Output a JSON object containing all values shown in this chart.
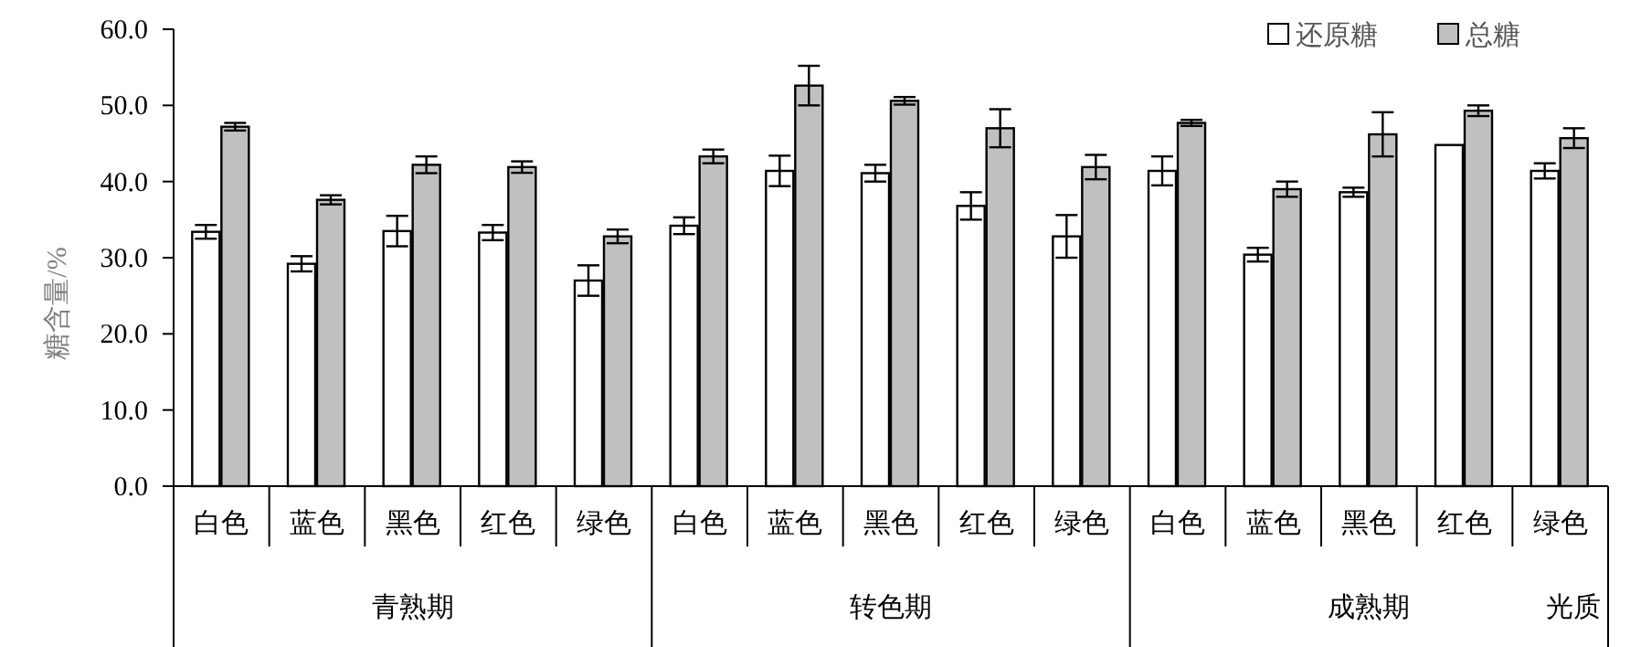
{
  "chart_data": {
    "type": "bar",
    "ylabel": "糖含量/%",
    "xlabel": "光质",
    "categories": [
      "白色",
      "蓝色",
      "黑色",
      "红色",
      "绿色",
      "白色",
      "蓝色",
      "黑色",
      "红色",
      "绿色",
      "白色",
      "蓝色",
      "黑色",
      "红色",
      "绿色"
    ],
    "annotations": [
      "青熟期",
      "转色期",
      "成熟期"
    ],
    "series": [
      {
        "name": "还原糖",
        "color": "#ffffff",
        "values": [
          33.4,
          29.2,
          33.5,
          33.3,
          27.0,
          34.2,
          41.4,
          41.1,
          36.8,
          32.8,
          41.4,
          30.4,
          38.6,
          44.8,
          41.4
        ],
        "errors": [
          0.9,
          1.0,
          2.0,
          1.0,
          2.0,
          1.1,
          2.0,
          1.1,
          1.8,
          2.8,
          1.9,
          0.9,
          0.6,
          null,
          1.0
        ]
      },
      {
        "name": "总糖",
        "color": "#c0c0c0",
        "values": [
          47.2,
          37.6,
          42.2,
          41.9,
          32.8,
          43.3,
          52.6,
          50.6,
          47.0,
          41.9,
          47.7,
          39.0,
          46.2,
          49.3,
          45.7
        ],
        "errors": [
          0.5,
          0.6,
          1.1,
          0.75,
          0.9,
          0.9,
          2.6,
          0.5,
          2.5,
          1.6,
          0.4,
          1.0,
          2.9,
          0.7,
          1.3
        ]
      }
    ],
    "ylim": [
      0,
      60
    ],
    "yticks": [
      {
        "value": 0,
        "label": "0.0"
      },
      {
        "value": 10,
        "label": "10.0"
      },
      {
        "value": 20,
        "label": "20.0"
      },
      {
        "value": 30,
        "label": "30.0"
      },
      {
        "value": 40,
        "label": "40.0"
      },
      {
        "value": 50,
        "label": "50.0"
      },
      {
        "value": 60,
        "label": "60.0"
      }
    ],
    "legend": "top right",
    "grid": false
  }
}
